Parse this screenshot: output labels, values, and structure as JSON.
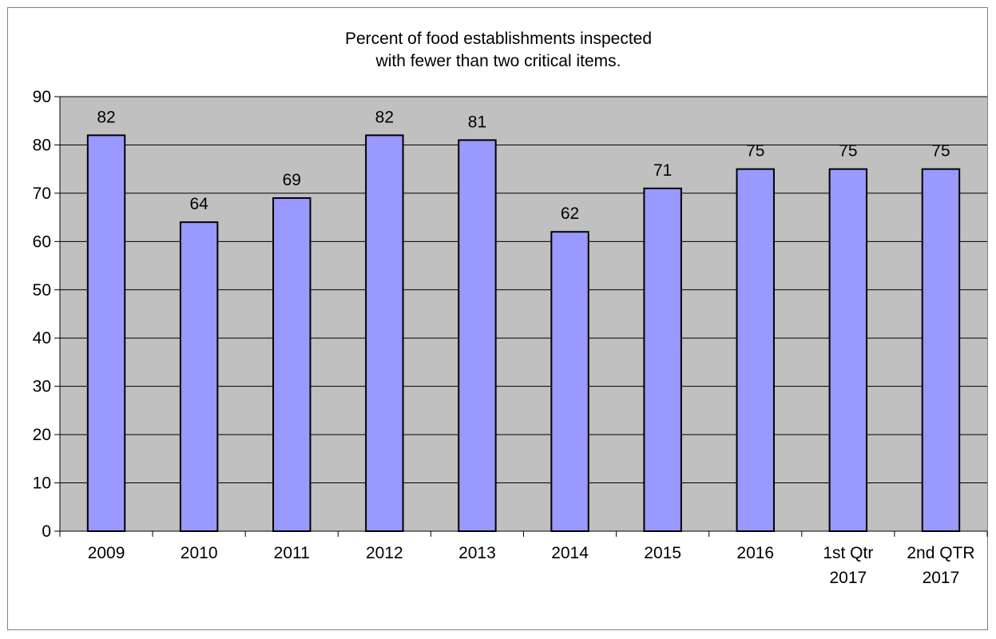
{
  "chart_data": {
    "type": "bar",
    "title_lines": [
      "Percent of food establishments inspected",
      "with fewer than two critical items."
    ],
    "categories": [
      [
        "2009"
      ],
      [
        "2010"
      ],
      [
        "2011"
      ],
      [
        "2012"
      ],
      [
        "2013"
      ],
      [
        "2014"
      ],
      [
        "2015"
      ],
      [
        "2016"
      ],
      [
        "1st Qtr",
        "2017"
      ],
      [
        "2nd QTR",
        "2017"
      ]
    ],
    "values": [
      82,
      64,
      69,
      82,
      81,
      62,
      71,
      75,
      75,
      75
    ],
    "y_ticks": [
      0,
      10,
      20,
      30,
      40,
      50,
      60,
      70,
      80,
      90
    ],
    "ylim": [
      0,
      90
    ],
    "grid": true,
    "legend": false,
    "colors": {
      "bar_fill": "#9999ff",
      "bar_stroke": "#000000",
      "plot_background": "#c0c0c0",
      "grid": "#000000"
    }
  }
}
